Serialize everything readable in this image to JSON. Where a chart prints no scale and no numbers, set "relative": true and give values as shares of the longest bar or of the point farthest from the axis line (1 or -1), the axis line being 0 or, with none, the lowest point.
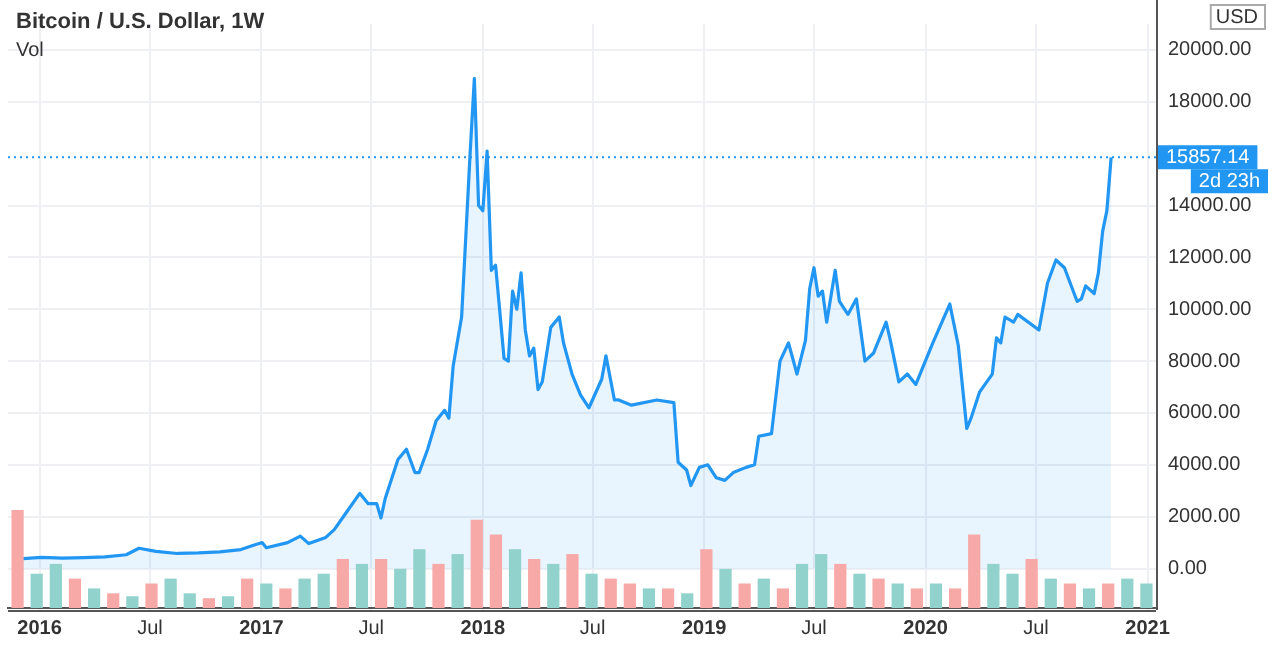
{
  "chart_data": [
    {
      "type": "area",
      "title": "Bitcoin / U.S. Dollar, 1W",
      "ylabel": "USD",
      "x": [
        "2015-11-23",
        "2016-01-04",
        "2016-02-08",
        "2016-03-14",
        "2016-04-18",
        "2016-05-23",
        "2016-06-13",
        "2016-07-11",
        "2016-08-15",
        "2016-09-19",
        "2016-10-24",
        "2016-11-28",
        "2016-12-19",
        "2017-01-02",
        "2017-01-09",
        "2017-02-13",
        "2017-03-06",
        "2017-03-20",
        "2017-04-17",
        "2017-05-01",
        "2017-05-22",
        "2017-06-12",
        "2017-06-26",
        "2017-07-10",
        "2017-07-17",
        "2017-07-24",
        "2017-08-14",
        "2017-08-28",
        "2017-09-11",
        "2017-09-18",
        "2017-10-02",
        "2017-10-16",
        "2017-10-30",
        "2017-11-06",
        "2017-11-13",
        "2017-11-27",
        "2017-12-11",
        "2017-12-18",
        "2017-12-25",
        "2018-01-01",
        "2018-01-08",
        "2018-01-15",
        "2018-01-22",
        "2018-02-05",
        "2018-02-12",
        "2018-02-19",
        "2018-02-26",
        "2018-03-05",
        "2018-03-12",
        "2018-03-19",
        "2018-03-26",
        "2018-04-02",
        "2018-04-09",
        "2018-04-23",
        "2018-05-07",
        "2018-05-14",
        "2018-05-28",
        "2018-06-11",
        "2018-06-25",
        "2018-07-16",
        "2018-07-23",
        "2018-08-06",
        "2018-08-13",
        "2018-09-03",
        "2018-10-15",
        "2018-11-12",
        "2018-11-19",
        "2018-12-03",
        "2018-12-10",
        "2018-12-24",
        "2019-01-07",
        "2019-01-21",
        "2019-02-04",
        "2019-02-18",
        "2019-03-11",
        "2019-03-25",
        "2019-04-01",
        "2019-04-22",
        "2019-05-06",
        "2019-05-20",
        "2019-06-03",
        "2019-06-17",
        "2019-06-24",
        "2019-07-01",
        "2019-07-08",
        "2019-07-15",
        "2019-07-22",
        "2019-08-05",
        "2019-08-12",
        "2019-08-26",
        "2019-09-09",
        "2019-09-23",
        "2019-10-07",
        "2019-10-28",
        "2019-11-04",
        "2019-11-18",
        "2019-12-02",
        "2019-12-16",
        "2020-01-13",
        "2020-02-10",
        "2020-02-24",
        "2020-03-09",
        "2020-03-16",
        "2020-03-30",
        "2020-04-20",
        "2020-04-27",
        "2020-05-04",
        "2020-05-11",
        "2020-05-25",
        "2020-06-01",
        "2020-07-06",
        "2020-07-20",
        "2020-08-03",
        "2020-08-17",
        "2020-09-07",
        "2020-09-14",
        "2020-09-21",
        "2020-10-05",
        "2020-10-12",
        "2020-10-19",
        "2020-10-26",
        "2020-11-02"
      ],
      "series": [
        {
          "color": "#2196f3",
          "values": [
            360,
            430,
            400,
            420,
            450,
            530,
            780,
            660,
            580,
            600,
            640,
            730,
            900,
            1000,
            800,
            1000,
            1250,
            960,
            1200,
            1500,
            2200,
            2900,
            2500,
            2500,
            1950,
            2700,
            4200,
            4600,
            3700,
            3700,
            4600,
            5700,
            6100,
            5800,
            7800,
            9700,
            16000,
            18900,
            14000,
            13800,
            16100,
            11500,
            11700,
            8100,
            8000,
            10700,
            10000,
            11400,
            9200,
            8200,
            8500,
            6900,
            7200,
            9300,
            9700,
            8700,
            7500,
            6700,
            6200,
            7300,
            8200,
            6500,
            6500,
            6300,
            6500,
            6400,
            4100,
            3800,
            3200,
            3900,
            4000,
            3500,
            3400,
            3700,
            3900,
            4000,
            5100,
            5200,
            8000,
            8700,
            7500,
            8800,
            10800,
            11600,
            10500,
            10700,
            9500,
            11500,
            10300,
            9800,
            10400,
            8000,
            8300,
            9500,
            8800,
            7200,
            7500,
            7100,
            8700,
            10200,
            8600,
            5400,
            5800,
            6800,
            7500,
            8900,
            8700,
            9700,
            9500,
            9800,
            9200,
            11000,
            11900,
            11600,
            10300,
            10400,
            10900,
            10600,
            11400,
            13000,
            13800,
            15857.14
          ]
        }
      ],
      "xlim": [
        "2015-11-10",
        "2021-01-15"
      ],
      "xticks": [
        {
          "value": "2016-01-01",
          "label": "2016"
        },
        {
          "value": "2016-07-01",
          "label": "Jul"
        },
        {
          "value": "2017-01-01",
          "label": "2017"
        },
        {
          "value": "2017-07-01",
          "label": "Jul"
        },
        {
          "value": "2018-01-01",
          "label": "2018"
        },
        {
          "value": "2018-07-01",
          "label": "Jul"
        },
        {
          "value": "2019-01-01",
          "label": "2019"
        },
        {
          "value": "2019-07-01",
          "label": "Jul"
        },
        {
          "value": "2020-01-01",
          "label": "2020"
        },
        {
          "value": "2020-07-01",
          "label": "Jul"
        },
        {
          "value": "2021-01-01",
          "label": "2021"
        }
      ],
      "ylim": [
        -1600,
        21000
      ],
      "yticks": [
        {
          "value": 0,
          "label": "0.00"
        },
        {
          "value": 2000,
          "label": "2000.00"
        },
        {
          "value": 4000,
          "label": "4000.00"
        },
        {
          "value": 6000,
          "label": "6000.00"
        },
        {
          "value": 8000,
          "label": "8000.00"
        },
        {
          "value": 10000,
          "label": "10000.00"
        },
        {
          "value": 12000,
          "label": "12000.00"
        },
        {
          "value": 14000,
          "label": "14000.00"
        },
        {
          "value": 18000,
          "label": "18000.00"
        },
        {
          "value": 20000,
          "label": "20000.00"
        }
      ],
      "ref_lines": [
        {
          "axis": "y",
          "value": 15857.14,
          "label": "15857.14",
          "color": "#2196f3",
          "line_style": "dotted"
        }
      ],
      "annotations": [
        "2d 23h"
      ],
      "grid": true,
      "legend": false
    },
    {
      "type": "bar",
      "title": "Vol",
      "relative": true,
      "categories": [
        null,
        null,
        null,
        null,
        null,
        null,
        null,
        null,
        null,
        null,
        null,
        null,
        null,
        null,
        null,
        null,
        null,
        null,
        null,
        null,
        null,
        null,
        null,
        null,
        null,
        null,
        null,
        null,
        null,
        null,
        null,
        null,
        null,
        null,
        null,
        null,
        null,
        null,
        null,
        null,
        null,
        null,
        null,
        null,
        null,
        null,
        null,
        null,
        null,
        null,
        null,
        null,
        null,
        null,
        null,
        null,
        null,
        null,
        null,
        null
      ],
      "values": [
        1,
        0.35,
        0.45,
        0.3,
        0.2,
        0.15,
        0.12,
        0.25,
        0.3,
        0.15,
        0.1,
        0.12,
        0.3,
        0.25,
        0.2,
        0.3,
        0.35,
        0.5,
        0.45,
        0.5,
        0.4,
        0.6,
        0.45,
        0.55,
        0.9,
        0.75,
        0.6,
        0.5,
        0.45,
        0.55,
        0.35,
        0.3,
        0.25,
        0.2,
        0.2,
        0.15,
        0.6,
        0.4,
        0.25,
        0.3,
        0.2,
        0.45,
        0.55,
        0.45,
        0.35,
        0.3,
        0.25,
        0.2,
        0.25,
        0.2,
        0.75,
        0.45,
        0.35,
        0.5,
        0.3,
        0.25,
        0.2,
        0.25,
        0.3,
        0.25
      ],
      "colors": [
        "#f7a9a7",
        "#92d2cc",
        "#92d2cc",
        "#f7a9a7",
        "#92d2cc",
        "#f7a9a7",
        "#92d2cc",
        "#f7a9a7",
        "#92d2cc",
        "#92d2cc",
        "#f7a9a7",
        "#92d2cc",
        "#f7a9a7",
        "#92d2cc",
        "#f7a9a7",
        "#92d2cc",
        "#92d2cc",
        "#f7a9a7",
        "#92d2cc",
        "#f7a9a7",
        "#92d2cc",
        "#92d2cc",
        "#f7a9a7",
        "#92d2cc",
        "#f7a9a7",
        "#f7a9a7",
        "#92d2cc",
        "#f7a9a7",
        "#92d2cc",
        "#f7a9a7",
        "#92d2cc",
        "#f7a9a7",
        "#f7a9a7",
        "#92d2cc",
        "#f7a9a7",
        "#92d2cc",
        "#f7a9a7",
        "#92d2cc",
        "#f7a9a7",
        "#92d2cc",
        "#f7a9a7",
        "#92d2cc",
        "#92d2cc",
        "#f7a9a7",
        "#92d2cc",
        "#f7a9a7",
        "#92d2cc",
        "#f7a9a7",
        "#92d2cc",
        "#f7a9a7",
        "#f7a9a7",
        "#92d2cc",
        "#92d2cc",
        "#f7a9a7",
        "#92d2cc",
        "#f7a9a7",
        "#92d2cc",
        "#f7a9a7",
        "#92d2cc",
        "#92d2cc"
      ],
      "legend": false
    }
  ]
}
